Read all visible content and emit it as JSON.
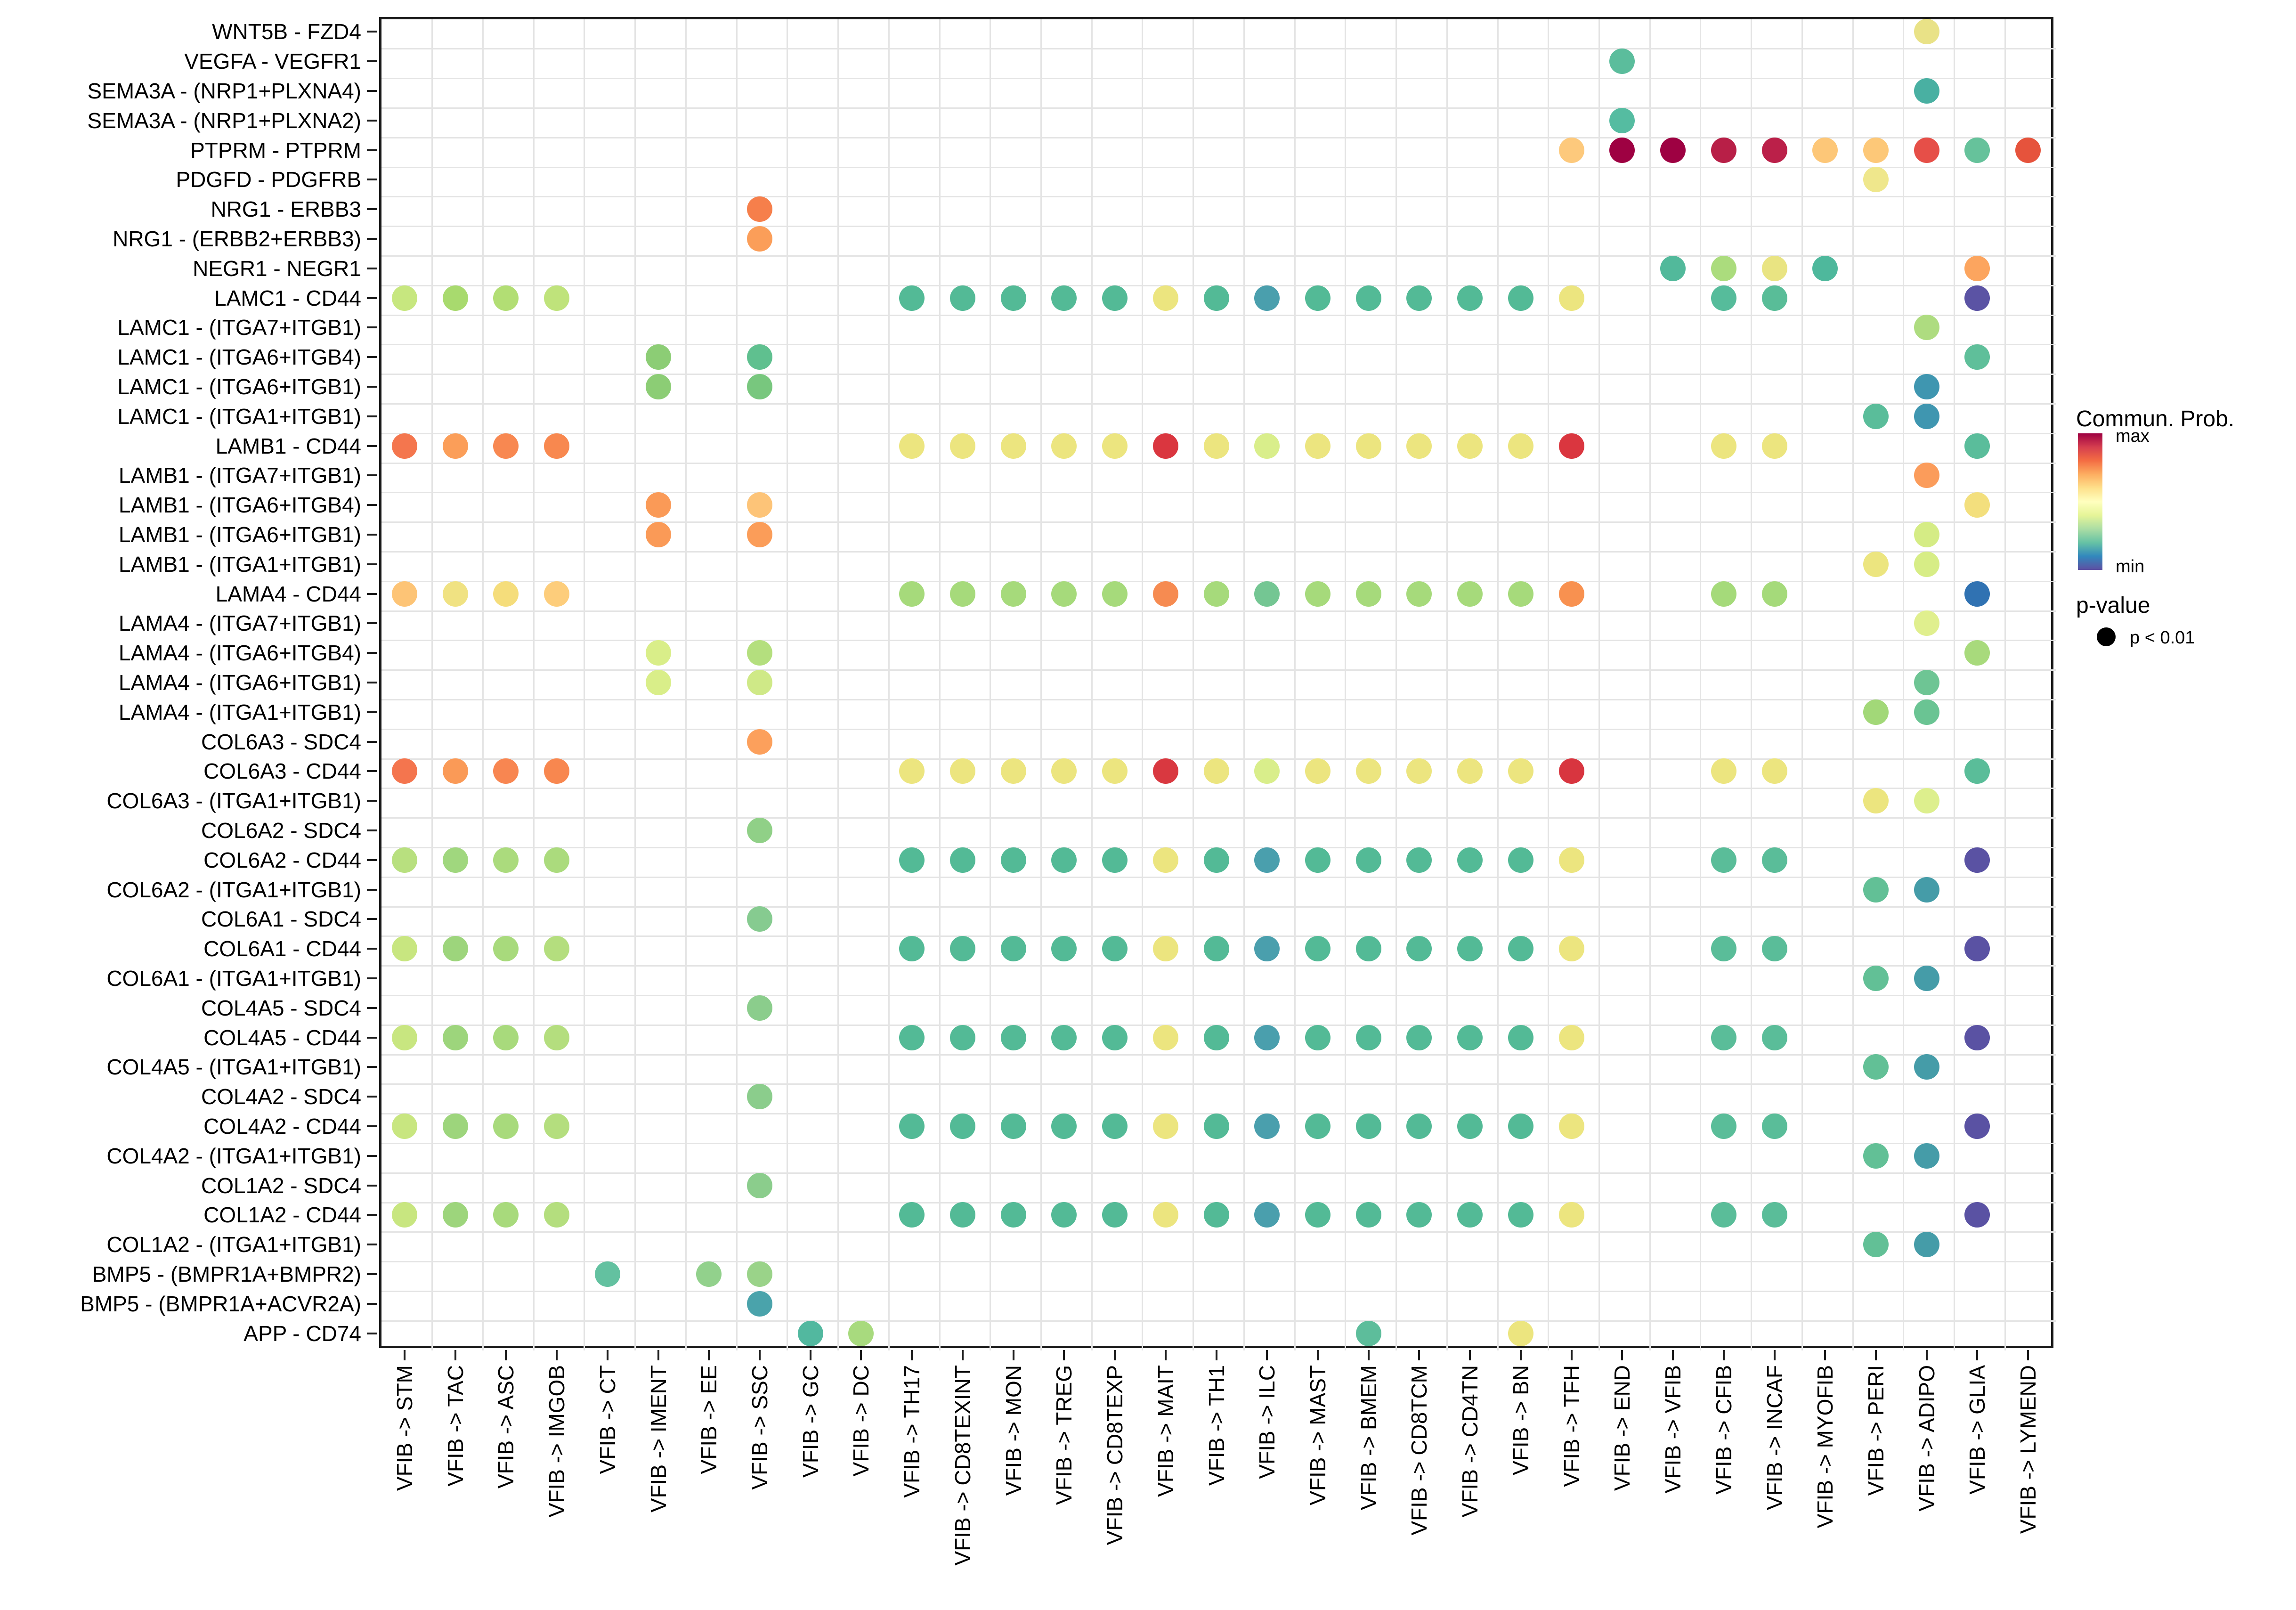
{
  "chart_data": {
    "type": "scatter",
    "subtype": "bubble-matrix",
    "title": "",
    "xlabel": "",
    "ylabel": "",
    "grid": "on",
    "x_categories": [
      "VFIB -> STM",
      "VFIB -> TAC",
      "VFIB -> ASC",
      "VFIB -> IMGOB",
      "VFIB -> CT",
      "VFIB -> IMENT",
      "VFIB -> EE",
      "VFIB -> SSC",
      "VFIB -> GC",
      "VFIB -> DC",
      "VFIB -> TH17",
      "VFIB -> CD8TEXINT",
      "VFIB -> MON",
      "VFIB -> TREG",
      "VFIB -> CD8TEXP",
      "VFIB -> MAIT",
      "VFIB -> TH1",
      "VFIB -> ILC",
      "VFIB -> MAST",
      "VFIB -> BMEM",
      "VFIB -> CD8TCM",
      "VFIB -> CD4TN",
      "VFIB -> BN",
      "VFIB -> TFH",
      "VFIB -> END",
      "VFIB -> VFIB",
      "VFIB -> CFIB",
      "VFIB -> INCAF",
      "VFIB -> MYOFIB",
      "VFIB -> PERI",
      "VFIB -> ADIPO",
      "VFIB -> GLIA",
      "VFIB -> LYMEND"
    ],
    "y_categories": [
      "WNT5B - FZD4",
      "VEGFA - VEGFR1",
      "SEMA3A - (NRP1+PLXNA4)",
      "SEMA3A - (NRP1+PLXNA2)",
      "PTPRM - PTPRM",
      "PDGFD - PDGFRB",
      "NRG1 - ERBB3",
      "NRG1 - (ERBB2+ERBB3)",
      "NEGR1 - NEGR1",
      "LAMC1 - CD44",
      "LAMC1 - (ITGA7+ITGB1)",
      "LAMC1 - (ITGA6+ITGB4)",
      "LAMC1 - (ITGA6+ITGB1)",
      "LAMC1 - (ITGA1+ITGB1)",
      "LAMB1 - CD44",
      "LAMB1 - (ITGA7+ITGB1)",
      "LAMB1 - (ITGA6+ITGB4)",
      "LAMB1 - (ITGA6+ITGB1)",
      "LAMB1 - (ITGA1+ITGB1)",
      "LAMA4 - CD44",
      "LAMA4 - (ITGA7+ITGB1)",
      "LAMA4 - (ITGA6+ITGB4)",
      "LAMA4 - (ITGA6+ITGB1)",
      "LAMA4 - (ITGA1+ITGB1)",
      "COL6A3 - SDC4",
      "COL6A3 - CD44",
      "COL6A3 - (ITGA1+ITGB1)",
      "COL6A2 - SDC4",
      "COL6A2 - CD44",
      "COL6A2 - (ITGA1+ITGB1)",
      "COL6A1 - SDC4",
      "COL6A1 - CD44",
      "COL6A1 - (ITGA1+ITGB1)",
      "COL4A5 - SDC4",
      "COL4A5 - CD44",
      "COL4A5 - (ITGA1+ITGB1)",
      "COL4A2 - SDC4",
      "COL4A2 - CD44",
      "COL4A2 - (ITGA1+ITGB1)",
      "COL1A2 - SDC4",
      "COL1A2 - CD44",
      "COL1A2 - (ITGA1+ITGB1)",
      "BMP5 - (BMPR1A+BMPR2)",
      "BMP5 - (BMPR1A+ACVR2A)",
      "APP - CD74"
    ],
    "dots": [
      [
        0,
        30,
        "#e9e287"
      ],
      [
        1,
        24,
        "#5bbd9c"
      ],
      [
        2,
        30,
        "#49b0a2"
      ],
      [
        3,
        24,
        "#55bca1"
      ],
      [
        4,
        23,
        "#fdc97c"
      ],
      [
        4,
        24,
        "#9e0142"
      ],
      [
        4,
        25,
        "#9e0142"
      ],
      [
        4,
        26,
        "#b81f47"
      ],
      [
        4,
        27,
        "#bb2049"
      ],
      [
        4,
        28,
        "#fdc778"
      ],
      [
        4,
        29,
        "#fdc878"
      ],
      [
        4,
        30,
        "#e64f48"
      ],
      [
        4,
        31,
        "#66c29b"
      ],
      [
        4,
        32,
        "#e6533c"
      ],
      [
        5,
        29,
        "#efe78c"
      ],
      [
        6,
        7,
        "#f67f4b"
      ],
      [
        7,
        7,
        "#fb9e59"
      ],
      [
        8,
        25,
        "#52b99b"
      ],
      [
        8,
        26,
        "#abdc7d"
      ],
      [
        8,
        27,
        "#e9e482"
      ],
      [
        8,
        28,
        "#4eb89c"
      ],
      [
        8,
        31,
        "#fca55f"
      ],
      [
        9,
        0,
        "#c7e77f"
      ],
      [
        9,
        1,
        "#a8da6e"
      ],
      [
        9,
        2,
        "#b2de74"
      ],
      [
        9,
        3,
        "#bfe37b"
      ],
      [
        9,
        10,
        "#53ba96"
      ],
      [
        9,
        11,
        "#53ba96"
      ],
      [
        9,
        12,
        "#53ba96"
      ],
      [
        9,
        13,
        "#53ba96"
      ],
      [
        9,
        14,
        "#53ba96"
      ],
      [
        9,
        15,
        "#ece57f"
      ],
      [
        9,
        16,
        "#53ba96"
      ],
      [
        9,
        17,
        "#4a9fad"
      ],
      [
        9,
        18,
        "#53ba96"
      ],
      [
        9,
        19,
        "#53ba96"
      ],
      [
        9,
        20,
        "#53ba96"
      ],
      [
        9,
        21,
        "#53ba96"
      ],
      [
        9,
        22,
        "#53ba96"
      ],
      [
        9,
        23,
        "#ece57f"
      ],
      [
        9,
        26,
        "#56bc9b"
      ],
      [
        9,
        27,
        "#59bd98"
      ],
      [
        9,
        31,
        "#5b53a4"
      ],
      [
        10,
        30,
        "#aedc80"
      ],
      [
        11,
        5,
        "#8ccd75"
      ],
      [
        11,
        7,
        "#5fc08f"
      ],
      [
        11,
        31,
        "#5fbf9a"
      ],
      [
        12,
        5,
        "#8ccd75"
      ],
      [
        12,
        7,
        "#78c77e"
      ],
      [
        12,
        30,
        "#3f96b0"
      ],
      [
        13,
        29,
        "#5abd9a"
      ],
      [
        13,
        30,
        "#3f96b0"
      ],
      [
        14,
        0,
        "#f4764e"
      ],
      [
        14,
        1,
        "#fb9e59"
      ],
      [
        14,
        2,
        "#f88851"
      ],
      [
        14,
        3,
        "#f8884f"
      ],
      [
        14,
        10,
        "#ece57f"
      ],
      [
        14,
        11,
        "#ece57f"
      ],
      [
        14,
        12,
        "#ece57f"
      ],
      [
        14,
        13,
        "#ece57f"
      ],
      [
        14,
        14,
        "#ece57f"
      ],
      [
        14,
        15,
        "#da363f"
      ],
      [
        14,
        16,
        "#ece57f"
      ],
      [
        14,
        17,
        "#d9ee8b"
      ],
      [
        14,
        18,
        "#ece57f"
      ],
      [
        14,
        19,
        "#ece57f"
      ],
      [
        14,
        20,
        "#ece57f"
      ],
      [
        14,
        21,
        "#ece57f"
      ],
      [
        14,
        22,
        "#ece57f"
      ],
      [
        14,
        23,
        "#da363f"
      ],
      [
        14,
        26,
        "#ece57f"
      ],
      [
        14,
        27,
        "#ece57f"
      ],
      [
        14,
        31,
        "#5abd9b"
      ],
      [
        15,
        30,
        "#fb9c5b"
      ],
      [
        16,
        5,
        "#fa9a57"
      ],
      [
        16,
        7,
        "#fdc478"
      ],
      [
        16,
        31,
        "#f3df7d"
      ],
      [
        17,
        5,
        "#fa9a57"
      ],
      [
        17,
        7,
        "#fb9d59"
      ],
      [
        17,
        30,
        "#d5ec85"
      ],
      [
        18,
        29,
        "#ece57f"
      ],
      [
        18,
        30,
        "#d7ed86"
      ],
      [
        19,
        0,
        "#fdc476"
      ],
      [
        19,
        1,
        "#f0e282"
      ],
      [
        19,
        2,
        "#f5dd7b"
      ],
      [
        19,
        3,
        "#fdcd7b"
      ],
      [
        19,
        10,
        "#a6da7b"
      ],
      [
        19,
        11,
        "#a6da7b"
      ],
      [
        19,
        12,
        "#a6da7b"
      ],
      [
        19,
        13,
        "#a6da7b"
      ],
      [
        19,
        14,
        "#a6da7b"
      ],
      [
        19,
        15,
        "#f68b51"
      ],
      [
        19,
        16,
        "#a6da7b"
      ],
      [
        19,
        17,
        "#74c693"
      ],
      [
        19,
        18,
        "#a6da7b"
      ],
      [
        19,
        19,
        "#a6da7b"
      ],
      [
        19,
        20,
        "#a6da7b"
      ],
      [
        19,
        21,
        "#a6da7b"
      ],
      [
        19,
        22,
        "#a6da7b"
      ],
      [
        19,
        23,
        "#f89150"
      ],
      [
        19,
        26,
        "#a5da7a"
      ],
      [
        19,
        27,
        "#a5da7a"
      ],
      [
        19,
        31,
        "#3072b2"
      ],
      [
        20,
        30,
        "#e0ef8e"
      ],
      [
        21,
        5,
        "#d9ee89"
      ],
      [
        21,
        7,
        "#b4df7e"
      ],
      [
        21,
        31,
        "#a8da7c"
      ],
      [
        22,
        5,
        "#d9ee89"
      ],
      [
        22,
        7,
        "#cfe987"
      ],
      [
        22,
        30,
        "#6ec594"
      ],
      [
        23,
        29,
        "#a2d878"
      ],
      [
        23,
        30,
        "#6ac493"
      ],
      [
        24,
        7,
        "#fca05c"
      ],
      [
        25,
        0,
        "#f4754e"
      ],
      [
        25,
        1,
        "#fa9a57"
      ],
      [
        25,
        2,
        "#f88651"
      ],
      [
        25,
        3,
        "#f8874f"
      ],
      [
        25,
        10,
        "#ece57f"
      ],
      [
        25,
        11,
        "#ece57f"
      ],
      [
        25,
        12,
        "#ece57f"
      ],
      [
        25,
        13,
        "#ece57f"
      ],
      [
        25,
        14,
        "#ece57f"
      ],
      [
        25,
        15,
        "#d93840"
      ],
      [
        25,
        16,
        "#ece57f"
      ],
      [
        25,
        17,
        "#d9ee8b"
      ],
      [
        25,
        18,
        "#ece57f"
      ],
      [
        25,
        19,
        "#ece57f"
      ],
      [
        25,
        20,
        "#ece57f"
      ],
      [
        25,
        21,
        "#ece57f"
      ],
      [
        25,
        22,
        "#ece57f"
      ],
      [
        25,
        23,
        "#d8353f"
      ],
      [
        25,
        26,
        "#ece57f"
      ],
      [
        25,
        27,
        "#ece57f"
      ],
      [
        25,
        31,
        "#5abd99"
      ],
      [
        26,
        29,
        "#ece57f"
      ],
      [
        26,
        30,
        "#ddef8d"
      ],
      [
        27,
        7,
        "#90d087"
      ],
      [
        28,
        0,
        "#b8e07f"
      ],
      [
        28,
        1,
        "#a0d77e"
      ],
      [
        28,
        2,
        "#abdb7d"
      ],
      [
        28,
        3,
        "#abdb7d"
      ],
      [
        28,
        10,
        "#53ba96"
      ],
      [
        28,
        11,
        "#53ba96"
      ],
      [
        28,
        12,
        "#53ba96"
      ],
      [
        28,
        13,
        "#53ba96"
      ],
      [
        28,
        14,
        "#53ba96"
      ],
      [
        28,
        15,
        "#ece57f"
      ],
      [
        28,
        16,
        "#53ba96"
      ],
      [
        28,
        17,
        "#4a9fad"
      ],
      [
        28,
        18,
        "#53ba96"
      ],
      [
        28,
        19,
        "#53ba96"
      ],
      [
        28,
        20,
        "#53ba96"
      ],
      [
        28,
        21,
        "#53ba96"
      ],
      [
        28,
        22,
        "#53ba96"
      ],
      [
        28,
        23,
        "#ece57f"
      ],
      [
        28,
        26,
        "#5abd99"
      ],
      [
        28,
        27,
        "#5abd99"
      ],
      [
        28,
        31,
        "#5a52a3"
      ],
      [
        29,
        29,
        "#62c096"
      ],
      [
        29,
        30,
        "#459ca8"
      ],
      [
        30,
        7,
        "#86cb90"
      ],
      [
        31,
        0,
        "#c8e680"
      ],
      [
        31,
        1,
        "#9dd57c"
      ],
      [
        31,
        2,
        "#a8da7c"
      ],
      [
        31,
        3,
        "#b4de7e"
      ],
      [
        31,
        10,
        "#53ba96"
      ],
      [
        31,
        11,
        "#53ba96"
      ],
      [
        31,
        12,
        "#53ba96"
      ],
      [
        31,
        13,
        "#53ba96"
      ],
      [
        31,
        14,
        "#53ba96"
      ],
      [
        31,
        15,
        "#ece57f"
      ],
      [
        31,
        16,
        "#53ba96"
      ],
      [
        31,
        17,
        "#4a9fad"
      ],
      [
        31,
        18,
        "#53ba96"
      ],
      [
        31,
        19,
        "#53ba96"
      ],
      [
        31,
        20,
        "#53ba96"
      ],
      [
        31,
        21,
        "#53ba96"
      ],
      [
        31,
        22,
        "#53ba96"
      ],
      [
        31,
        23,
        "#ece57f"
      ],
      [
        31,
        26,
        "#5abd99"
      ],
      [
        31,
        27,
        "#5abd99"
      ],
      [
        31,
        31,
        "#5a52a3"
      ],
      [
        32,
        29,
        "#62c096"
      ],
      [
        32,
        30,
        "#459ca8"
      ],
      [
        33,
        7,
        "#8bcd8c"
      ],
      [
        34,
        0,
        "#c8e680"
      ],
      [
        34,
        1,
        "#9dd57c"
      ],
      [
        34,
        2,
        "#a8da7c"
      ],
      [
        34,
        3,
        "#b4de7e"
      ],
      [
        34,
        10,
        "#53ba96"
      ],
      [
        34,
        11,
        "#53ba96"
      ],
      [
        34,
        12,
        "#53ba96"
      ],
      [
        34,
        13,
        "#53ba96"
      ],
      [
        34,
        14,
        "#53ba96"
      ],
      [
        34,
        15,
        "#ece57f"
      ],
      [
        34,
        16,
        "#53ba96"
      ],
      [
        34,
        17,
        "#4a9fad"
      ],
      [
        34,
        18,
        "#53ba96"
      ],
      [
        34,
        19,
        "#53ba96"
      ],
      [
        34,
        20,
        "#53ba96"
      ],
      [
        34,
        21,
        "#53ba96"
      ],
      [
        34,
        22,
        "#53ba96"
      ],
      [
        34,
        23,
        "#ece57f"
      ],
      [
        34,
        26,
        "#5abd99"
      ],
      [
        34,
        27,
        "#5abd99"
      ],
      [
        34,
        31,
        "#5a52a3"
      ],
      [
        35,
        29,
        "#62c096"
      ],
      [
        35,
        30,
        "#459ca8"
      ],
      [
        36,
        7,
        "#8bcd8c"
      ],
      [
        37,
        0,
        "#c8e680"
      ],
      [
        37,
        1,
        "#9dd57c"
      ],
      [
        37,
        2,
        "#a8da7c"
      ],
      [
        37,
        3,
        "#b4de7e"
      ],
      [
        37,
        10,
        "#53ba96"
      ],
      [
        37,
        11,
        "#53ba96"
      ],
      [
        37,
        12,
        "#53ba96"
      ],
      [
        37,
        13,
        "#53ba96"
      ],
      [
        37,
        14,
        "#53ba96"
      ],
      [
        37,
        15,
        "#ece57f"
      ],
      [
        37,
        16,
        "#53ba96"
      ],
      [
        37,
        17,
        "#4a9fad"
      ],
      [
        37,
        18,
        "#53ba96"
      ],
      [
        37,
        19,
        "#53ba96"
      ],
      [
        37,
        20,
        "#53ba96"
      ],
      [
        37,
        21,
        "#53ba96"
      ],
      [
        37,
        22,
        "#53ba96"
      ],
      [
        37,
        23,
        "#ece57f"
      ],
      [
        37,
        26,
        "#5abd99"
      ],
      [
        37,
        27,
        "#5abd99"
      ],
      [
        37,
        31,
        "#5a52a3"
      ],
      [
        38,
        29,
        "#62c096"
      ],
      [
        38,
        30,
        "#459ca8"
      ],
      [
        39,
        7,
        "#8bcd8c"
      ],
      [
        40,
        0,
        "#c8e680"
      ],
      [
        40,
        1,
        "#9dd57c"
      ],
      [
        40,
        2,
        "#a8da7c"
      ],
      [
        40,
        3,
        "#b4de7e"
      ],
      [
        40,
        10,
        "#53ba96"
      ],
      [
        40,
        11,
        "#53ba96"
      ],
      [
        40,
        12,
        "#53ba96"
      ],
      [
        40,
        13,
        "#53ba96"
      ],
      [
        40,
        14,
        "#53ba96"
      ],
      [
        40,
        15,
        "#ece57f"
      ],
      [
        40,
        16,
        "#53ba96"
      ],
      [
        40,
        17,
        "#4a9fad"
      ],
      [
        40,
        18,
        "#53ba96"
      ],
      [
        40,
        19,
        "#53ba96"
      ],
      [
        40,
        20,
        "#53ba96"
      ],
      [
        40,
        21,
        "#53ba96"
      ],
      [
        40,
        22,
        "#53ba96"
      ],
      [
        40,
        23,
        "#ece57f"
      ],
      [
        40,
        26,
        "#5abd99"
      ],
      [
        40,
        27,
        "#5abd99"
      ],
      [
        40,
        31,
        "#5a52a3"
      ],
      [
        41,
        29,
        "#62c096"
      ],
      [
        41,
        30,
        "#459ca8"
      ],
      [
        42,
        4,
        "#63c1a0"
      ],
      [
        42,
        6,
        "#92d18c"
      ],
      [
        42,
        7,
        "#9ad389"
      ],
      [
        43,
        7,
        "#4aa3ab"
      ],
      [
        44,
        8,
        "#52b89f"
      ],
      [
        44,
        9,
        "#a8da7e"
      ],
      [
        44,
        19,
        "#5dbd9b"
      ],
      [
        44,
        22,
        "#ece57f"
      ]
    ],
    "legend": {
      "title": "Commun. Prob.",
      "max_label": "max",
      "min_label": "min",
      "colormap_top_to_bottom": [
        "#9e0142",
        "#d53e4f",
        "#f46d43",
        "#fdae61",
        "#fee08b",
        "#ffffbf",
        "#e6f598",
        "#abdda4",
        "#66c2a5",
        "#3288bd",
        "#5e4fa2"
      ],
      "pvalue_title": "p-value",
      "pvalue_label": "p < 0.01",
      "pvalue_dot_color": "#000000"
    }
  }
}
